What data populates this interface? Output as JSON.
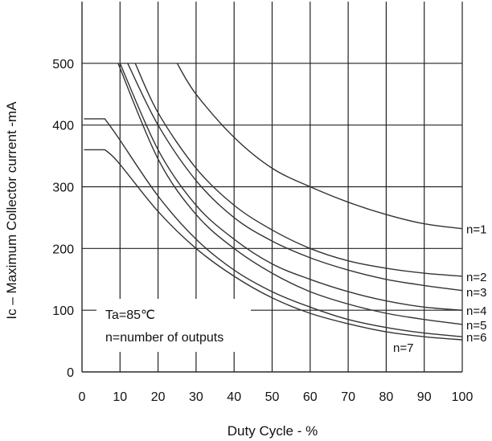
{
  "chart_data": {
    "type": "line",
    "xlabel": "Duty Cycle - %",
    "ylabel": "Ic – Maximum Collector current -mA",
    "xlim": [
      0,
      100
    ],
    "ylim": [
      0,
      600
    ],
    "x_ticks": [
      "0",
      "10",
      "20",
      "30",
      "40",
      "50",
      "60",
      "70",
      "80",
      "90",
      "100"
    ],
    "y_ticks": [
      "0",
      "100",
      "200",
      "300",
      "400",
      "500"
    ],
    "grid": true,
    "annotations": [
      "Ta=85℃",
      "n=number of outputs"
    ],
    "series": [
      {
        "name": "n=1",
        "x": [
          25,
          30,
          40,
          50,
          60,
          70,
          80,
          90,
          100
        ],
        "y": [
          500,
          450,
          380,
          330,
          300,
          275,
          255,
          240,
          232
        ]
      },
      {
        "name": "n=2",
        "x": [
          14,
          20,
          30,
          40,
          50,
          60,
          70,
          80,
          90,
          100
        ],
        "y": [
          500,
          420,
          330,
          270,
          230,
          200,
          180,
          168,
          160,
          155
        ]
      },
      {
        "name": "n=3",
        "x": [
          12,
          20,
          30,
          40,
          50,
          60,
          70,
          80,
          90,
          100
        ],
        "y": [
          500,
          400,
          310,
          250,
          212,
          185,
          165,
          150,
          140,
          132
        ]
      },
      {
        "name": "n=4",
        "x": [
          10,
          20,
          30,
          40,
          50,
          60,
          70,
          80,
          90,
          100
        ],
        "y": [
          500,
          360,
          270,
          215,
          175,
          150,
          130,
          115,
          105,
          100
        ]
      },
      {
        "name": "n=5",
        "x": [
          9.5,
          20,
          30,
          40,
          50,
          60,
          70,
          80,
          90,
          100
        ],
        "y": [
          500,
          345,
          255,
          200,
          160,
          130,
          110,
          95,
          85,
          77
        ]
      },
      {
        "name": "n=6",
        "x": [
          0.5,
          6,
          9.5,
          20,
          30,
          40,
          50,
          60,
          70,
          80,
          90,
          100
        ],
        "y": [
          410,
          410,
          380,
          285,
          215,
          165,
          130,
          105,
          85,
          72,
          63,
          57
        ]
      },
      {
        "name": "n=7",
        "x": [
          0.5,
          6,
          9.5,
          20,
          30,
          40,
          50,
          60,
          70,
          80,
          90,
          100
        ],
        "y": [
          360,
          360,
          340,
          260,
          200,
          155,
          120,
          95,
          78,
          65,
          57,
          52
        ]
      }
    ]
  }
}
